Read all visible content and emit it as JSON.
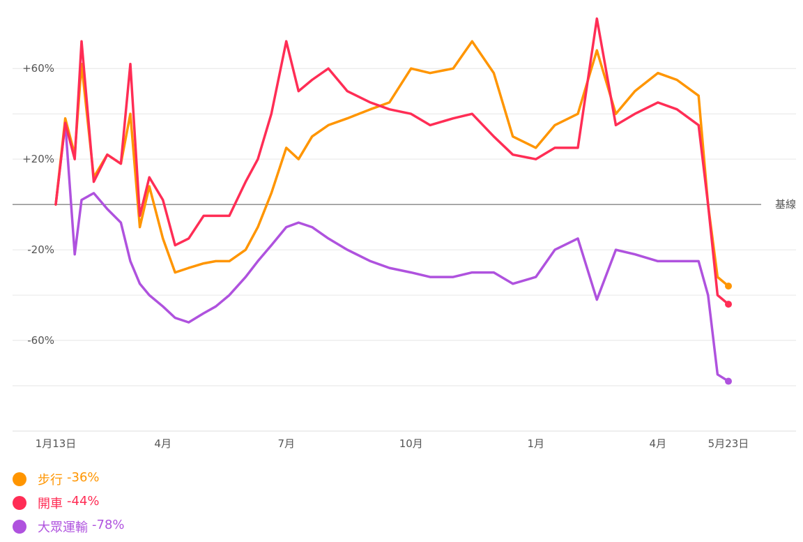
{
  "chart_data": {
    "type": "line",
    "title": "",
    "xlabel": "",
    "ylabel": "",
    "x_range": [
      "2020-01-13",
      "2021-05-23"
    ],
    "ylim": [
      -100,
      85
    ],
    "y_ticks": [
      {
        "value": 60,
        "label": "+60%"
      },
      {
        "value": 20,
        "label": "+20%"
      },
      {
        "value": -20,
        "label": "-20%"
      },
      {
        "value": -60,
        "label": "-60%"
      }
    ],
    "gridlines": [
      60,
      40,
      20,
      -20,
      -40,
      -60,
      -80,
      -100
    ],
    "baseline": {
      "value": 0,
      "label": "基線"
    },
    "x_ticks": [
      {
        "date": "2020-01-13",
        "label": "1月13日"
      },
      {
        "date": "2020-04-01",
        "label": "4月"
      },
      {
        "date": "2020-07-01",
        "label": "7月"
      },
      {
        "date": "2020-10-01",
        "label": "10月"
      },
      {
        "date": "2021-01-01",
        "label": "1月"
      },
      {
        "date": "2021-04-01",
        "label": "4月"
      },
      {
        "date": "2021-05-23",
        "label": "5月23日"
      }
    ],
    "series": [
      {
        "name": "步行",
        "color": "#ff9500",
        "latest": -36,
        "latest_label": "-36%",
        "points": [
          [
            "2020-01-13",
            0
          ],
          [
            "2020-01-20",
            38
          ],
          [
            "2020-01-27",
            22
          ],
          [
            "2020-02-01",
            62
          ],
          [
            "2020-02-10",
            12
          ],
          [
            "2020-02-20",
            22
          ],
          [
            "2020-03-01",
            18
          ],
          [
            "2020-03-08",
            40
          ],
          [
            "2020-03-15",
            -10
          ],
          [
            "2020-03-22",
            8
          ],
          [
            "2020-04-01",
            -15
          ],
          [
            "2020-04-10",
            -30
          ],
          [
            "2020-04-20",
            -28
          ],
          [
            "2020-05-01",
            -26
          ],
          [
            "2020-05-10",
            -25
          ],
          [
            "2020-05-20",
            -25
          ],
          [
            "2020-06-01",
            -20
          ],
          [
            "2020-06-10",
            -10
          ],
          [
            "2020-06-20",
            5
          ],
          [
            "2020-07-01",
            25
          ],
          [
            "2020-07-10",
            20
          ],
          [
            "2020-07-20",
            30
          ],
          [
            "2020-08-01",
            35
          ],
          [
            "2020-08-15",
            38
          ],
          [
            "2020-09-01",
            42
          ],
          [
            "2020-09-15",
            45
          ],
          [
            "2020-10-01",
            60
          ],
          [
            "2020-10-15",
            58
          ],
          [
            "2020-11-01",
            60
          ],
          [
            "2020-11-15",
            72
          ],
          [
            "2020-12-01",
            58
          ],
          [
            "2020-12-15",
            30
          ],
          [
            "2021-01-01",
            25
          ],
          [
            "2021-01-15",
            35
          ],
          [
            "2021-02-01",
            40
          ],
          [
            "2021-02-15",
            68
          ],
          [
            "2021-03-01",
            40
          ],
          [
            "2021-03-15",
            50
          ],
          [
            "2021-04-01",
            58
          ],
          [
            "2021-04-15",
            55
          ],
          [
            "2021-05-01",
            48
          ],
          [
            "2021-05-08",
            0
          ],
          [
            "2021-05-15",
            -32
          ],
          [
            "2021-05-23",
            -36
          ]
        ]
      },
      {
        "name": "開車",
        "color": "#ff2d55",
        "latest": -44,
        "latest_label": "-44%",
        "points": [
          [
            "2020-01-13",
            0
          ],
          [
            "2020-01-20",
            36
          ],
          [
            "2020-01-27",
            20
          ],
          [
            "2020-02-01",
            72
          ],
          [
            "2020-02-10",
            10
          ],
          [
            "2020-02-20",
            22
          ],
          [
            "2020-03-01",
            18
          ],
          [
            "2020-03-08",
            62
          ],
          [
            "2020-03-15",
            -5
          ],
          [
            "2020-03-22",
            12
          ],
          [
            "2020-04-01",
            2
          ],
          [
            "2020-04-10",
            -18
          ],
          [
            "2020-04-20",
            -15
          ],
          [
            "2020-05-01",
            -5
          ],
          [
            "2020-05-10",
            -5
          ],
          [
            "2020-05-20",
            -5
          ],
          [
            "2020-06-01",
            10
          ],
          [
            "2020-06-10",
            20
          ],
          [
            "2020-06-20",
            40
          ],
          [
            "2020-07-01",
            72
          ],
          [
            "2020-07-10",
            50
          ],
          [
            "2020-07-20",
            55
          ],
          [
            "2020-08-01",
            60
          ],
          [
            "2020-08-15",
            50
          ],
          [
            "2020-09-01",
            45
          ],
          [
            "2020-09-15",
            42
          ],
          [
            "2020-10-01",
            40
          ],
          [
            "2020-10-15",
            35
          ],
          [
            "2020-11-01",
            38
          ],
          [
            "2020-11-15",
            40
          ],
          [
            "2020-12-01",
            30
          ],
          [
            "2020-12-15",
            22
          ],
          [
            "2021-01-01",
            20
          ],
          [
            "2021-01-15",
            25
          ],
          [
            "2021-02-01",
            25
          ],
          [
            "2021-02-15",
            82
          ],
          [
            "2021-03-01",
            35
          ],
          [
            "2021-03-15",
            40
          ],
          [
            "2021-04-01",
            45
          ],
          [
            "2021-04-15",
            42
          ],
          [
            "2021-05-01",
            35
          ],
          [
            "2021-05-08",
            0
          ],
          [
            "2021-05-15",
            -40
          ],
          [
            "2021-05-23",
            -44
          ]
        ]
      },
      {
        "name": "大眾運輸",
        "color": "#af52de",
        "latest": -78,
        "latest_label": "-78%",
        "points": [
          [
            "2020-01-13",
            0
          ],
          [
            "2020-01-20",
            36
          ],
          [
            "2020-01-27",
            -22
          ],
          [
            "2020-02-01",
            2
          ],
          [
            "2020-02-10",
            5
          ],
          [
            "2020-02-20",
            -2
          ],
          [
            "2020-03-01",
            -8
          ],
          [
            "2020-03-08",
            -25
          ],
          [
            "2020-03-15",
            -35
          ],
          [
            "2020-03-22",
            -40
          ],
          [
            "2020-04-01",
            -45
          ],
          [
            "2020-04-10",
            -50
          ],
          [
            "2020-04-20",
            -52
          ],
          [
            "2020-05-01",
            -48
          ],
          [
            "2020-05-10",
            -45
          ],
          [
            "2020-05-20",
            -40
          ],
          [
            "2020-06-01",
            -32
          ],
          [
            "2020-06-10",
            -25
          ],
          [
            "2020-06-20",
            -18
          ],
          [
            "2020-07-01",
            -10
          ],
          [
            "2020-07-10",
            -8
          ],
          [
            "2020-07-20",
            -10
          ],
          [
            "2020-08-01",
            -15
          ],
          [
            "2020-08-15",
            -20
          ],
          [
            "2020-09-01",
            -25
          ],
          [
            "2020-09-15",
            -28
          ],
          [
            "2020-10-01",
            -30
          ],
          [
            "2020-10-15",
            -32
          ],
          [
            "2020-11-01",
            -32
          ],
          [
            "2020-11-15",
            -30
          ],
          [
            "2020-12-01",
            -30
          ],
          [
            "2020-12-15",
            -35
          ],
          [
            "2021-01-01",
            -32
          ],
          [
            "2021-01-15",
            -20
          ],
          [
            "2021-02-01",
            -15
          ],
          [
            "2021-02-15",
            -42
          ],
          [
            "2021-03-01",
            -20
          ],
          [
            "2021-03-15",
            -22
          ],
          [
            "2021-04-01",
            -25
          ],
          [
            "2021-04-15",
            -25
          ],
          [
            "2021-05-01",
            -25
          ],
          [
            "2021-05-08",
            -40
          ],
          [
            "2021-05-15",
            -75
          ],
          [
            "2021-05-23",
            -78
          ]
        ]
      }
    ]
  }
}
